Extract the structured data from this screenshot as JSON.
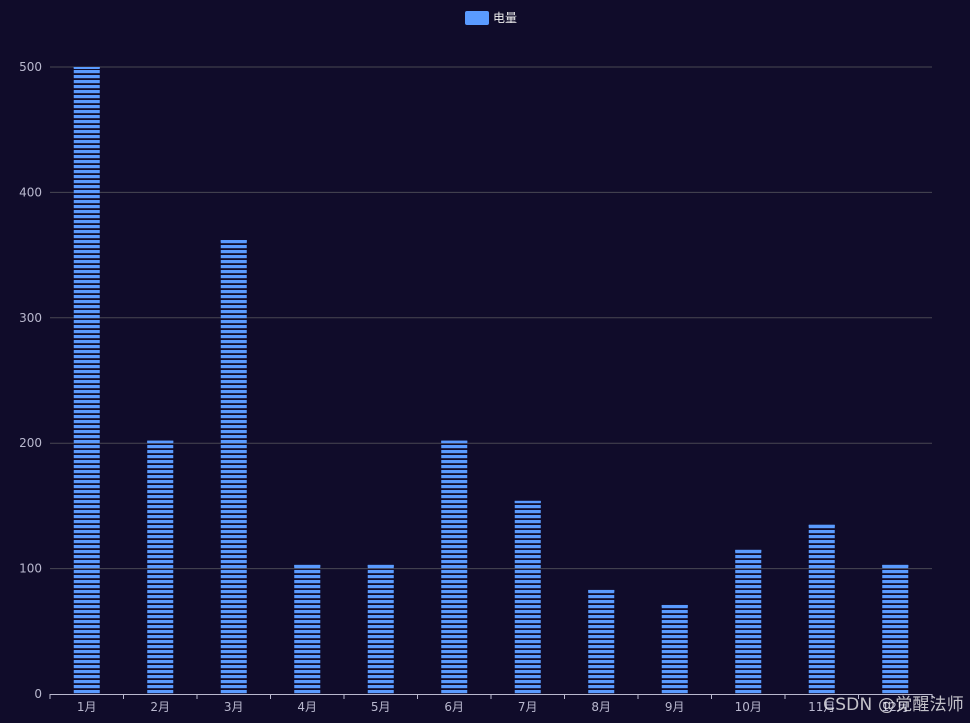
{
  "chart_data": {
    "type": "bar",
    "categories": [
      "1月",
      "2月",
      "3月",
      "4月",
      "5月",
      "6月",
      "7月",
      "8月",
      "9月",
      "10月",
      "11月",
      "12月"
    ],
    "series": [
      {
        "name": "电量",
        "values": [
          500,
          202,
          362,
          103,
          103,
          202,
          154,
          83,
          71,
          115,
          135,
          103
        ]
      }
    ],
    "ylim": [
      0,
      500
    ],
    "yticks": [
      0,
      100,
      200,
      300,
      400,
      500
    ],
    "grid": true,
    "legend_position": "top-center",
    "bar_style": "striped-horizontal-segments"
  },
  "colors": {
    "background": "#100c2a",
    "bar": "#5a9bff",
    "gridline": "#484753",
    "axis": "#b9b8ce",
    "text": "#b9b8ce"
  },
  "watermark": "CSDN @觉醒法师"
}
